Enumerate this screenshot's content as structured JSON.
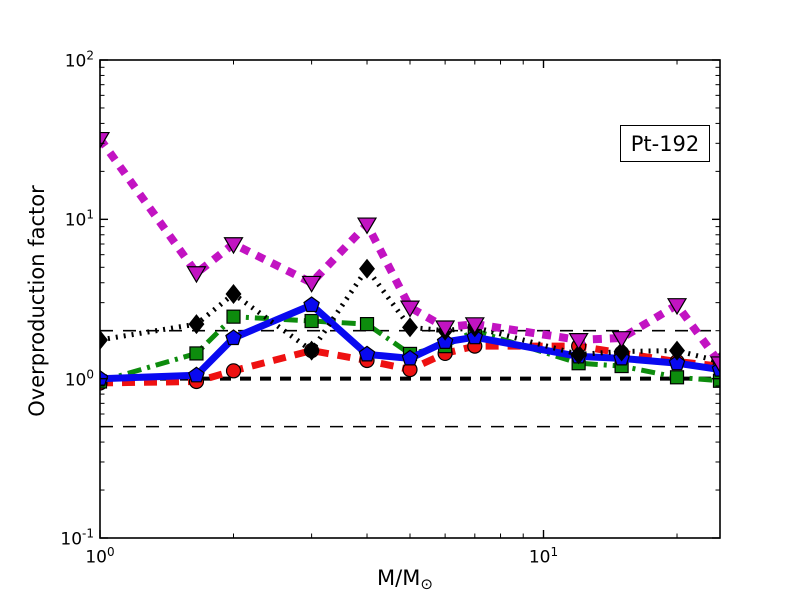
{
  "legend": {
    "label": "Pt-192"
  },
  "axes": {
    "ylabel": "Overproduction factor",
    "xlabel_main": "M/M",
    "xlabel_sub": "⊙",
    "x_ticks": [
      {
        "base": "10",
        "exp": "0",
        "value": 1
      },
      {
        "base": "10",
        "exp": "1",
        "value": 10
      }
    ],
    "y_ticks": [
      {
        "base": "10",
        "exp": "2",
        "value": 100
      },
      {
        "base": "10",
        "exp": "1",
        "value": 10
      },
      {
        "base": "10",
        "exp": "0",
        "value": 1
      },
      {
        "base": "10",
        "exp": "-1",
        "value": 0.1
      }
    ]
  },
  "chart_data": {
    "type": "line",
    "title": "Pt-192",
    "xlabel": "M/M_sun",
    "ylabel": "Overproduction factor",
    "x_scale": "log",
    "y_scale": "log",
    "xlim": [
      1,
      25
    ],
    "ylim": [
      0.1,
      100
    ],
    "grid": false,
    "x": [
      1.0,
      1.65,
      2.0,
      3.0,
      4.0,
      5.0,
      6.0,
      7.0,
      12.0,
      15.0,
      20.0,
      25.0
    ],
    "series": [
      {
        "name": "red-dashed-circles",
        "color": "#ee1111",
        "marker": "circle",
        "marker_size": 7,
        "line_width": 7,
        "dash": "13 9",
        "values": [
          0.94,
          0.96,
          1.12,
          1.5,
          1.3,
          1.14,
          1.44,
          1.6,
          1.6,
          1.45,
          1.28,
          1.2
        ]
      },
      {
        "name": "green-dashdot-squares",
        "color": "#0d8c0d",
        "marker": "square",
        "marker_size": 13,
        "line_width": 5,
        "dash": "14 6 3 6",
        "values": [
          0.96,
          1.44,
          2.45,
          2.3,
          2.2,
          1.43,
          1.6,
          2.0,
          1.25,
          1.2,
          1.02,
          0.97
        ]
      },
      {
        "name": "blue-solid-pentagons",
        "color": "#0909f0",
        "marker": "pentagon",
        "marker_size": 8,
        "line_width": 7,
        "dash": null,
        "values": [
          1.0,
          1.05,
          1.8,
          2.9,
          1.42,
          1.34,
          1.7,
          1.82,
          1.38,
          1.34,
          1.25,
          1.14
        ]
      },
      {
        "name": "black-dotted-diamonds",
        "color": "#000000",
        "marker": "diamond",
        "marker_size": 9,
        "line_width": 5,
        "dash": "2 6",
        "values": [
          1.75,
          2.2,
          3.4,
          1.5,
          4.9,
          2.1,
          2.0,
          2.1,
          1.42,
          1.48,
          1.5,
          1.28
        ]
      },
      {
        "name": "magenta-dashed-triangles",
        "color": "#c213c2",
        "marker": "triangle-down",
        "marker_size": 9,
        "line_width": 8,
        "dash": "9 8",
        "values": [
          32.0,
          4.6,
          7.0,
          4.0,
          9.3,
          2.8,
          2.1,
          2.2,
          1.75,
          1.8,
          2.9,
          1.25
        ]
      }
    ],
    "ref_lines": [
      {
        "name": "ref-line-2",
        "y": 2.0,
        "color": "#000000",
        "line_width": 1.6,
        "dash": "13 10"
      },
      {
        "name": "ref-line-0.5",
        "y": 0.5,
        "color": "#000000",
        "line_width": 1.6,
        "dash": "13 10"
      },
      {
        "name": "ref-line-1",
        "y": 1.0,
        "color": "#000000",
        "line_width": 4,
        "dash": "11 9"
      }
    ],
    "legend_position": "upper right"
  }
}
